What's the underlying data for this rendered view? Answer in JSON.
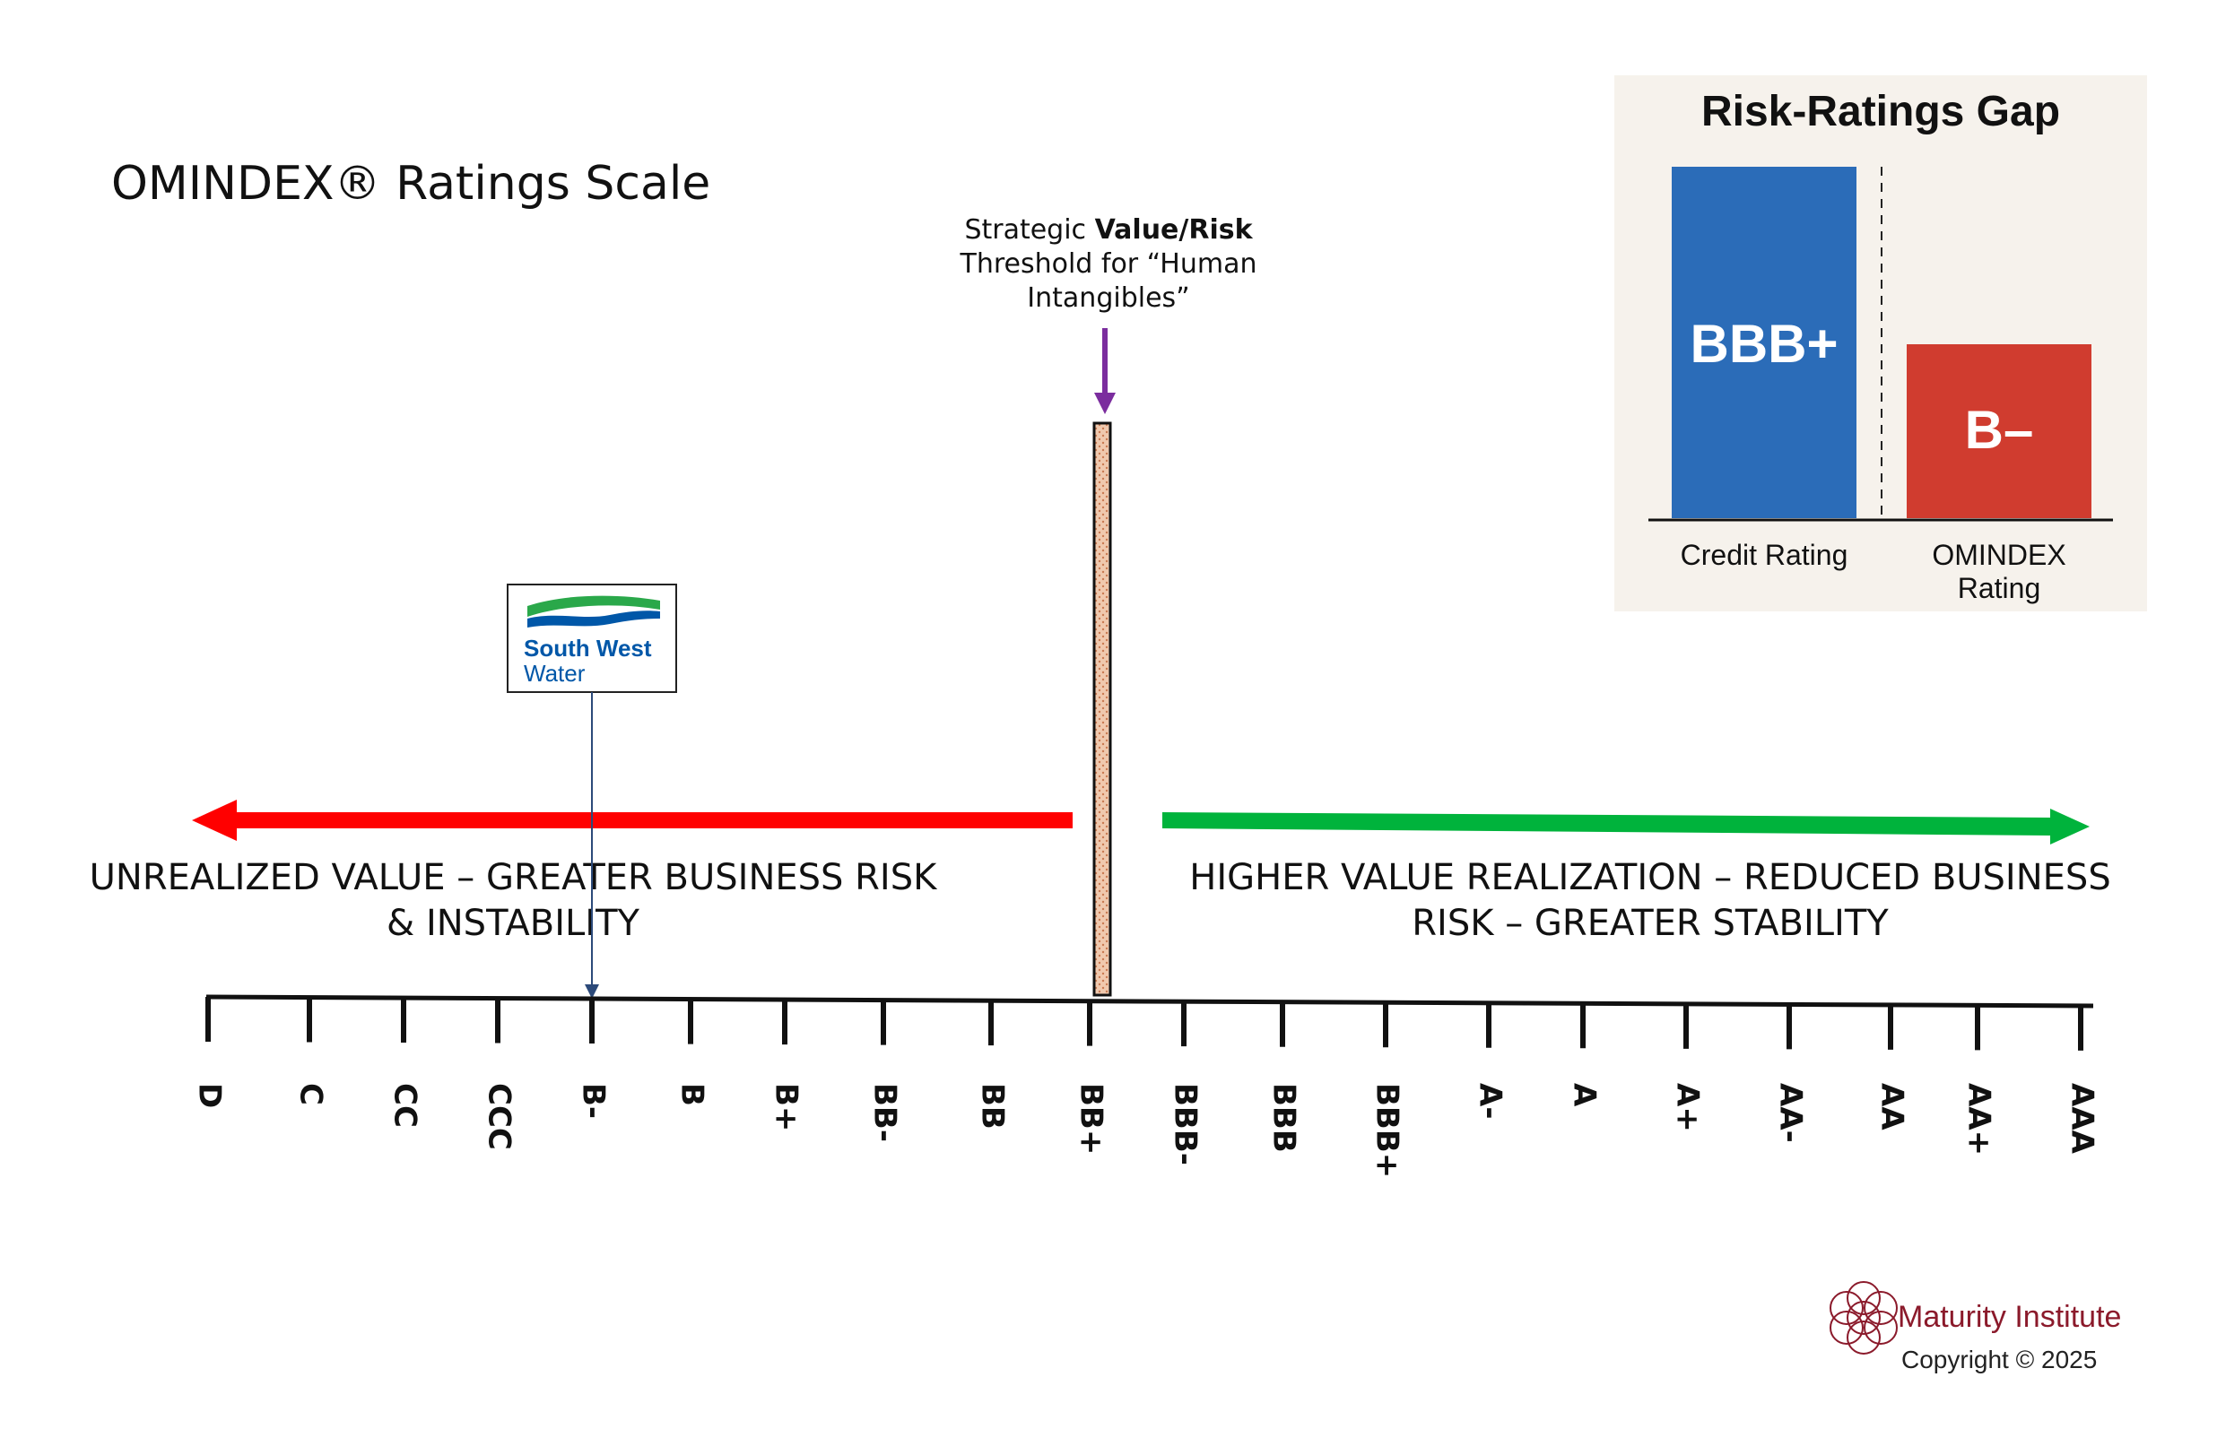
{
  "title": "OMINDEX® Ratings Scale",
  "threshold": {
    "line1_prefix": "Strategic ",
    "line1_bold": "Value/Risk",
    "line2": "Threshold for “Human",
    "line3": "Intangibles”",
    "position": "BB+"
  },
  "company": {
    "logo_line1": "South West",
    "logo_line2": "Water",
    "position": "B-"
  },
  "left_arrow": {
    "line1": "UNREALIZED VALUE – GREATER BUSINESS RISK",
    "line2": "& INSTABILITY",
    "color": "#ff0000"
  },
  "right_arrow": {
    "line1": "HIGHER VALUE REALIZATION – REDUCED BUSINESS",
    "line2": "RISK – GREATER STABILITY",
    "color": "#00b33c"
  },
  "scale": [
    "D",
    "C",
    "CC",
    "CCC",
    "B-",
    "B",
    "B+",
    "BB-",
    "BB",
    "BB+",
    "BBB-",
    "BBB",
    "BBB+",
    "A-",
    "A",
    "A+",
    "AA-",
    "AA",
    "AA+",
    "AAA"
  ],
  "inset": {
    "title": "Risk-Ratings Gap",
    "bars": [
      {
        "label": "BBB+",
        "category": "Credit Rating",
        "color": "#2b6cb8",
        "scale_value": "BBB+"
      },
      {
        "label": "B–",
        "category_line1": "OMINDEX",
        "category_line2": "Rating",
        "color": "#d03c2f",
        "scale_value": "B-"
      }
    ],
    "background": "#f6f2ec"
  },
  "footer": {
    "brand": "Maturity Institute",
    "copyright": "Copyright © 2025",
    "brand_color": "#8b1a2b"
  },
  "colors": {
    "threshold_arrow": "#7b2d9e",
    "threshold_bar": "#e8b89a",
    "logo_blue": "#0057a8",
    "logo_green": "#2aa84a"
  }
}
